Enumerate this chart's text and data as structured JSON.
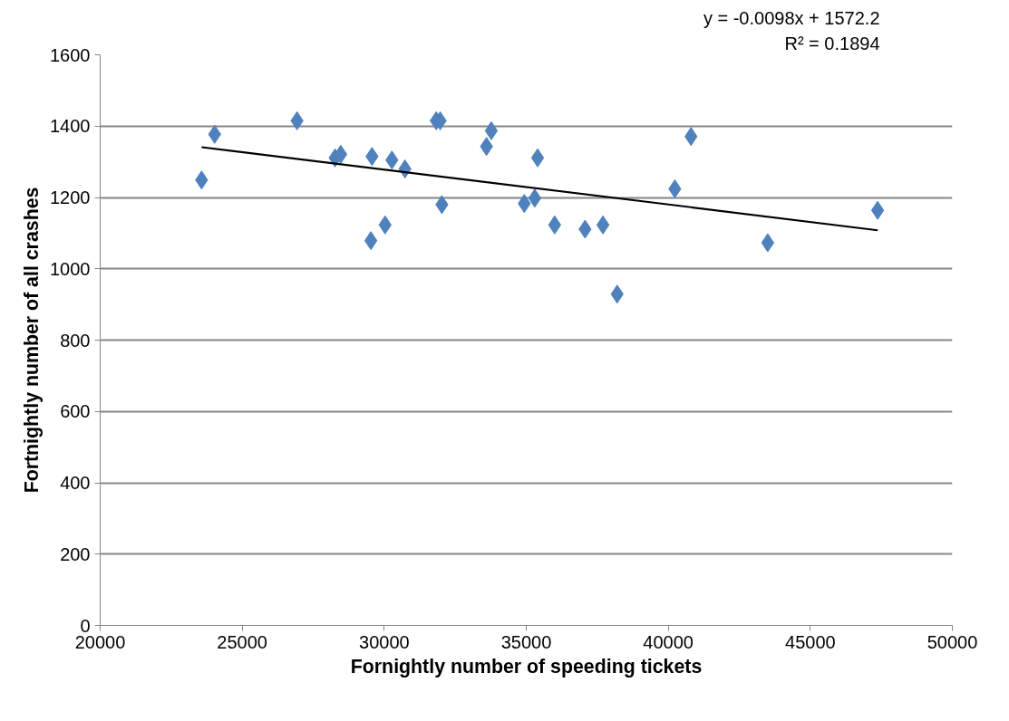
{
  "chart_data": {
    "type": "scatter",
    "xlabel": "Fornightly number of speeding tickets",
    "ylabel": "Fortnightly number of all crashes",
    "annotations": [
      "y = -0.0098x + 1572.2",
      "R² = 0.1894"
    ],
    "xlim": [
      20000,
      50000
    ],
    "xticks": [
      20000,
      25000,
      30000,
      35000,
      40000,
      45000,
      50000
    ],
    "ylim": [
      0,
      1600
    ],
    "yticks": [
      0,
      200,
      400,
      600,
      800,
      1000,
      1200,
      1400,
      1600
    ],
    "grid": "y",
    "marker": "diamond",
    "series": [
      {
        "color": "#4f81bd",
        "x": [
          23570,
          24030,
          26930,
          28270,
          28470,
          29570,
          29530,
          30030,
          30270,
          30730,
          31830,
          31970,
          32030,
          33600,
          33770,
          34930,
          35300,
          35400,
          36000,
          37070,
          37700,
          38200,
          40230,
          40800,
          43500,
          47370
        ],
        "values": [
          1249,
          1377,
          1415,
          1311,
          1321,
          1315,
          1079,
          1123,
          1305,
          1280,
          1415,
          1415,
          1180,
          1343,
          1387,
          1183,
          1198,
          1311,
          1123,
          1111,
          1123,
          929,
          1224,
          1371,
          1073,
          1164
        ]
      },
      {
        "type": "line",
        "color": "#000000",
        "marker": "none",
        "x": [
          23570,
          47370
        ],
        "values": [
          1341,
          1108
        ]
      }
    ]
  }
}
